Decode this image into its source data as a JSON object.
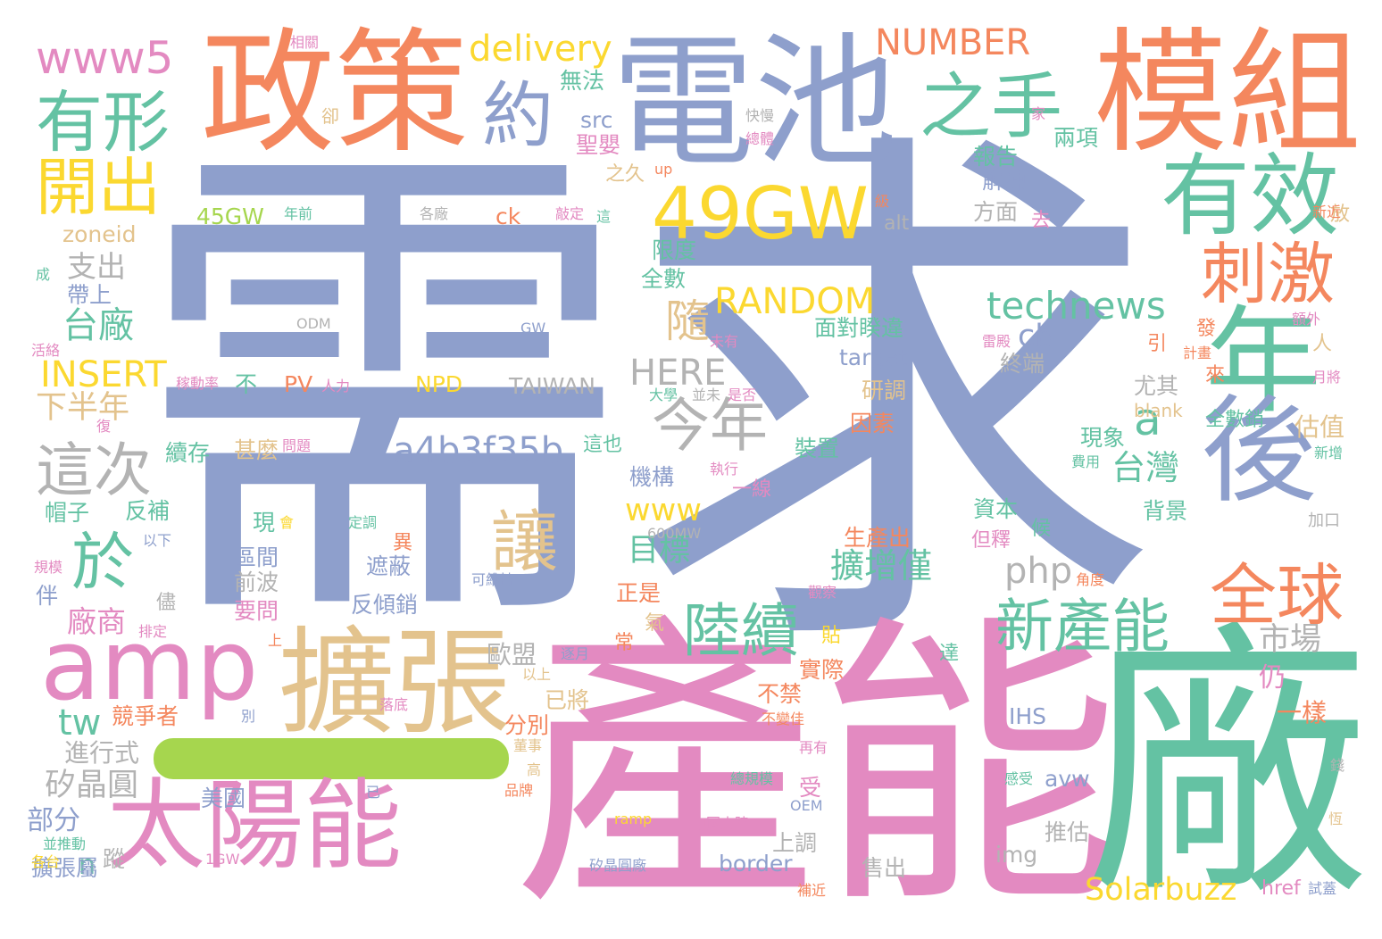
{
  "palette": {
    "orange": "#f4875e",
    "blue": "#8e9fcc",
    "green": "#64c2a3",
    "pink": "#e38ac1",
    "yellow": "#fbd830",
    "lime": "#a6d64e",
    "tan": "#e3c38d",
    "gray": "#b3b3b3"
  },
  "words": [
    {
      "text": "需",
      "color": "blue"
    },
    {
      "text": "求",
      "color": "blue"
    },
    {
      "text": "產能",
      "color": "pink"
    },
    {
      "text": "廠",
      "color": "green"
    },
    {
      "text": "電池",
      "color": "blue"
    },
    {
      "text": "模組",
      "color": "orange"
    },
    {
      "text": "政策",
      "color": "orange"
    },
    {
      "text": "擴張",
      "color": "tan"
    },
    {
      "text": "太陽能",
      "color": "pink"
    },
    {
      "text": "amp",
      "color": "pink"
    },
    {
      "text": "年",
      "color": "green"
    },
    {
      "text": "後",
      "color": "blue"
    },
    {
      "text": "有效",
      "color": "green"
    },
    {
      "text": "49GW",
      "color": "yellow"
    },
    {
      "text": "有形",
      "color": "green"
    },
    {
      "text": "約",
      "color": "blue"
    },
    {
      "text": "之手",
      "color": "green"
    },
    {
      "text": "刺激",
      "color": "orange"
    },
    {
      "text": "全球",
      "color": "orange"
    },
    {
      "text": "開出",
      "color": "yellow"
    },
    {
      "text": "於",
      "color": "green"
    },
    {
      "text": "讓",
      "color": "tan"
    },
    {
      "text": "陸續",
      "color": "green"
    },
    {
      "text": "新產能",
      "color": "green"
    },
    {
      "text": "今年",
      "color": "gray"
    },
    {
      "text": "這次",
      "color": "gray"
    },
    {
      "text": "www5",
      "color": "pink"
    },
    {
      "text": "delivery",
      "color": "yellow"
    },
    {
      "text": "NUMBER",
      "color": "orange"
    },
    {
      "text": "technews",
      "color": "green"
    },
    {
      "text": "RANDOM",
      "color": "yellow"
    },
    {
      "text": "a4b3f35b",
      "color": "blue"
    },
    {
      "text": "HERE",
      "color": "gray"
    },
    {
      "text": "隨",
      "color": "tan"
    },
    {
      "text": "a",
      "color": "green"
    },
    {
      "text": "台灣",
      "color": "green"
    },
    {
      "text": "INSERT",
      "color": "yellow"
    },
    {
      "text": "台廠",
      "color": "green"
    },
    {
      "text": "php",
      "color": "gray"
    },
    {
      "text": "擴增僅",
      "color": "green"
    },
    {
      "text": "www",
      "color": "yellow"
    },
    {
      "text": "tw",
      "color": "green"
    },
    {
      "text": "Solarbuzz",
      "color": "yellow"
    },
    {
      "text": "cb",
      "color": "blue"
    },
    {
      "text": "市場",
      "color": "gray"
    },
    {
      "text": "下半年",
      "color": "tan"
    },
    {
      "text": "目標",
      "color": "green"
    },
    {
      "text": "矽晶圓",
      "color": "gray"
    },
    {
      "text": "廠商",
      "color": "pink"
    },
    {
      "text": "支出",
      "color": "gray"
    },
    {
      "text": "zoneid",
      "color": "tan"
    },
    {
      "text": "45GW",
      "color": "lime"
    },
    {
      "text": "n",
      "color": "green"
    },
    {
      "text": "部分",
      "color": "blue"
    },
    {
      "text": "歐盟",
      "color": "gray"
    },
    {
      "text": "進行式",
      "color": "gray"
    },
    {
      "text": "TAIWAN",
      "color": "gray"
    },
    {
      "text": "border",
      "color": "blue"
    },
    {
      "text": "img",
      "color": "gray"
    },
    {
      "text": "推估",
      "color": "gray"
    },
    {
      "text": "avw",
      "color": "blue"
    },
    {
      "text": "IHS",
      "color": "blue"
    },
    {
      "text": "一樣",
      "color": "orange"
    },
    {
      "text": "估值",
      "color": "tan"
    },
    {
      "text": "尤其",
      "color": "gray"
    },
    {
      "text": "現象",
      "color": "green"
    },
    {
      "text": "背景",
      "color": "green"
    },
    {
      "text": "資本",
      "color": "green"
    },
    {
      "text": "方面",
      "color": "gray"
    },
    {
      "text": "報告",
      "color": "green"
    },
    {
      "text": "解凍",
      "color": "blue"
    },
    {
      "text": "兩項",
      "color": "green"
    },
    {
      "text": "src",
      "color": "blue"
    },
    {
      "text": "無法",
      "color": "green"
    },
    {
      "text": "聖嬰",
      "color": "pink"
    },
    {
      "text": "ck",
      "color": "orange"
    },
    {
      "text": "限度",
      "color": "green"
    },
    {
      "text": "全數",
      "color": "green"
    },
    {
      "text": "面對睽違",
      "color": "green"
    },
    {
      "text": "target",
      "color": "blue"
    },
    {
      "text": "研調",
      "color": "tan"
    },
    {
      "text": "因素",
      "color": "orange"
    },
    {
      "text": "裝置",
      "color": "green"
    },
    {
      "text": "機構",
      "color": "blue"
    },
    {
      "text": "生產出",
      "color": "orange"
    },
    {
      "text": "正是",
      "color": "orange"
    },
    {
      "text": "遮蔽",
      "color": "blue"
    },
    {
      "text": "反傾銷",
      "color": "blue"
    },
    {
      "text": "區間",
      "color": "blue"
    },
    {
      "text": "前波",
      "color": "gray"
    },
    {
      "text": "要問",
      "color": "pink"
    },
    {
      "text": "已將",
      "color": "tan"
    },
    {
      "text": "分別",
      "color": "orange"
    },
    {
      "text": "不禁",
      "color": "orange"
    },
    {
      "text": "實際",
      "color": "orange"
    },
    {
      "text": "上調",
      "color": "gray"
    },
    {
      "text": "售出",
      "color": "gray"
    },
    {
      "text": "美國",
      "color": "blue"
    },
    {
      "text": "競爭者",
      "color": "orange"
    },
    {
      "text": "擴張屬",
      "color": "blue"
    },
    {
      "text": "蹤",
      "color": "gray"
    },
    {
      "text": "反補",
      "color": "green"
    },
    {
      "text": "甚麼",
      "color": "tan"
    },
    {
      "text": "續存",
      "color": "green"
    },
    {
      "text": "帽子",
      "color": "green"
    },
    {
      "text": "帶上",
      "color": "blue"
    },
    {
      "text": "PV",
      "color": "orange"
    },
    {
      "text": "NPD",
      "color": "yellow"
    },
    {
      "text": "不",
      "color": "green"
    },
    {
      "text": "alt",
      "color": "gray"
    },
    {
      "text": "blank",
      "color": "tan"
    },
    {
      "text": "終端",
      "color": "gray"
    },
    {
      "text": "全數銷",
      "color": "green"
    },
    {
      "text": "仍",
      "color": "pink"
    },
    {
      "text": "發",
      "color": "orange"
    },
    {
      "text": "來",
      "color": "orange"
    },
    {
      "text": "引",
      "color": "orange"
    },
    {
      "text": "去",
      "color": "pink"
    },
    {
      "text": "卻",
      "color": "tan"
    },
    {
      "text": "一線",
      "color": "pink"
    },
    {
      "text": "這也",
      "color": "green"
    },
    {
      "text": "之久",
      "color": "tan"
    },
    {
      "text": "異",
      "color": "orange"
    },
    {
      "text": "但釋",
      "color": "pink"
    },
    {
      "text": "候",
      "color": "green"
    },
    {
      "text": "現",
      "color": "green"
    },
    {
      "text": "受",
      "color": "pink"
    },
    {
      "text": "氣",
      "color": "tan"
    },
    {
      "text": "常",
      "color": "orange"
    },
    {
      "text": "貼",
      "color": "yellow"
    },
    {
      "text": "達",
      "color": "green"
    },
    {
      "text": "伴",
      "color": "blue"
    },
    {
      "text": "儘",
      "color": "gray"
    },
    {
      "text": "人",
      "color": "tan"
    },
    {
      "text": "放",
      "color": "tan"
    },
    {
      "text": "href",
      "color": "pink"
    },
    {
      "text": "加口",
      "color": "gray"
    },
    {
      "text": "相關",
      "color": "pink"
    },
    {
      "text": "快慢",
      "color": "gray"
    },
    {
      "text": "總體",
      "color": "pink"
    },
    {
      "text": "家",
      "color": "pink"
    },
    {
      "text": "級",
      "color": "orange"
    },
    {
      "text": "新近",
      "color": "orange"
    },
    {
      "text": "年前",
      "color": "green"
    },
    {
      "text": "各廠",
      "color": "gray"
    },
    {
      "text": "敲定",
      "color": "pink"
    },
    {
      "text": "這",
      "color": "green"
    },
    {
      "text": "up",
      "color": "orange"
    },
    {
      "text": "成",
      "color": "green"
    },
    {
      "text": "ODM",
      "color": "gray"
    },
    {
      "text": "GW",
      "color": "blue"
    },
    {
      "text": "活絡",
      "color": "pink"
    },
    {
      "text": "未有",
      "color": "pink"
    },
    {
      "text": "雷殿",
      "color": "pink"
    },
    {
      "text": "計畫",
      "color": "orange"
    },
    {
      "text": "額外",
      "color": "pink"
    },
    {
      "text": "月將",
      "color": "pink"
    },
    {
      "text": "稼動率",
      "color": "pink"
    },
    {
      "text": "人力",
      "color": "pink"
    },
    {
      "text": "大學",
      "color": "green"
    },
    {
      "text": "並未",
      "color": "gray"
    },
    {
      "text": "是否",
      "color": "pink"
    },
    {
      "text": "復",
      "color": "pink"
    },
    {
      "text": "問題",
      "color": "pink"
    },
    {
      "text": "執行",
      "color": "pink"
    },
    {
      "text": "費用",
      "color": "green"
    },
    {
      "text": "新增",
      "color": "green"
    },
    {
      "text": "以下",
      "color": "blue"
    },
    {
      "text": "會",
      "color": "yellow"
    },
    {
      "text": "定調",
      "color": "green"
    },
    {
      "text": "600MW",
      "color": "gray"
    },
    {
      "text": "規模",
      "color": "pink"
    },
    {
      "text": "可維持",
      "color": "blue"
    },
    {
      "text": "角度",
      "color": "orange"
    },
    {
      "text": "觀察",
      "color": "pink"
    },
    {
      "text": "排定",
      "color": "pink"
    },
    {
      "text": "上",
      "color": "orange"
    },
    {
      "text": "逐月",
      "color": "blue"
    },
    {
      "text": "以上",
      "color": "tan"
    },
    {
      "text": "落底",
      "color": "pink"
    },
    {
      "text": "不變佳",
      "color": "orange"
    },
    {
      "text": "再有",
      "color": "pink"
    },
    {
      "text": "別",
      "color": "blue"
    },
    {
      "text": "董事",
      "color": "tan"
    },
    {
      "text": "高",
      "color": "tan"
    },
    {
      "text": "品牌",
      "color": "orange"
    },
    {
      "text": "已",
      "color": "blue"
    },
    {
      "text": "總規模",
      "color": "green"
    },
    {
      "text": "感受",
      "color": "green"
    },
    {
      "text": "錢",
      "color": "gray"
    },
    {
      "text": "OEM",
      "color": "blue"
    },
    {
      "text": "ramp",
      "color": "yellow"
    },
    {
      "text": "中國大陸",
      "color": "pink"
    },
    {
      "text": "恆",
      "color": "tan"
    },
    {
      "text": "並推動",
      "color": "green"
    },
    {
      "text": "各台",
      "color": "yellow"
    },
    {
      "text": "1GW",
      "color": "pink"
    },
    {
      "text": "矽晶圓廠",
      "color": "blue"
    },
    {
      "text": "補近",
      "color": "orange"
    },
    {
      "text": "試蓋",
      "color": "blue"
    }
  ]
}
